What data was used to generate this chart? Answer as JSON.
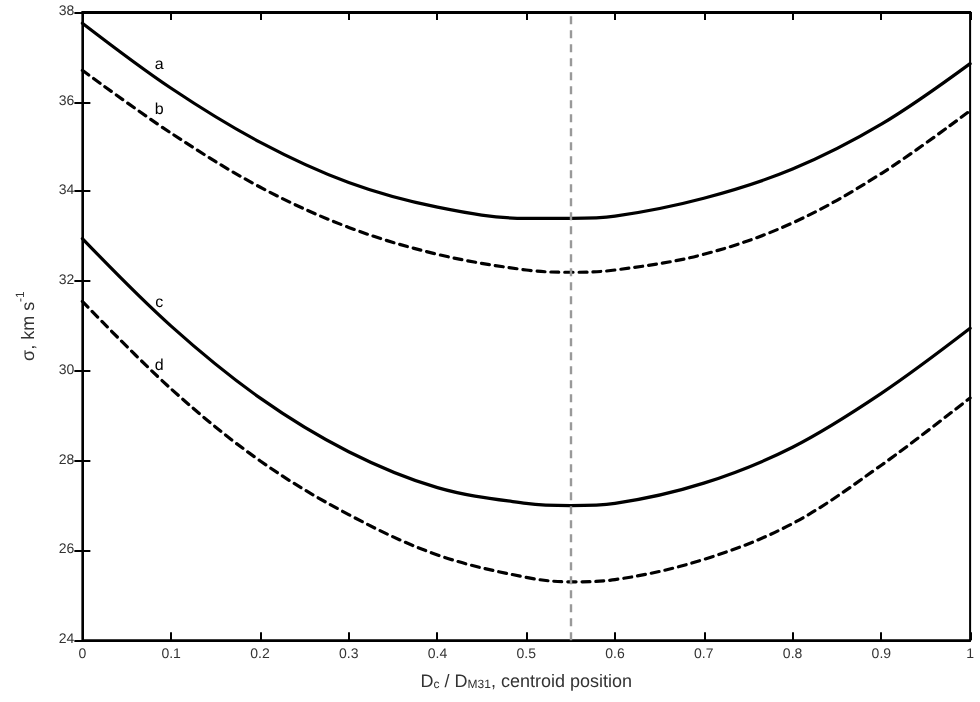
{
  "chart_data": {
    "type": "line",
    "xlabel": "D$_{c}$ / D$_{M31}$, centroid position",
    "ylabel": "σ, km s$^{-1}$",
    "x": [
      0,
      0.1,
      0.2,
      0.3,
      0.4,
      0.5,
      0.55,
      0.6,
      0.7,
      0.8,
      0.9,
      1.0
    ],
    "series": [
      {
        "name": "a",
        "color": "#000000",
        "line_style": "solid",
        "values": [
          37.75,
          36.3,
          35.1,
          34.2,
          33.65,
          33.4,
          33.4,
          33.45,
          33.85,
          34.5,
          35.5,
          36.85
        ]
      },
      {
        "name": "b",
        "color": "#000000",
        "line_style": "dashed",
        "values": [
          36.7,
          35.3,
          34.1,
          33.2,
          32.6,
          32.25,
          32.2,
          32.25,
          32.6,
          33.3,
          34.4,
          35.8
        ]
      },
      {
        "name": "c",
        "color": "#000000",
        "line_style": "solid",
        "values": [
          32.95,
          31.0,
          29.4,
          28.2,
          27.4,
          27.05,
          27.0,
          27.05,
          27.5,
          28.3,
          29.5,
          30.95
        ]
      },
      {
        "name": "d",
        "color": "#000000",
        "line_style": "dashed",
        "values": [
          31.55,
          29.6,
          28.0,
          26.8,
          25.9,
          25.4,
          25.3,
          25.35,
          25.8,
          26.6,
          27.9,
          29.4
        ]
      }
    ],
    "ref_lines": [
      {
        "axis": "x",
        "value": 0.55,
        "color": "#999999",
        "line_style": "dashed"
      }
    ],
    "xlim": [
      0,
      1
    ],
    "xticks": [
      0,
      0.1,
      0.2,
      0.3,
      0.4,
      0.5,
      0.6,
      0.7,
      0.8,
      0.9,
      1
    ],
    "ylim": [
      24,
      38
    ],
    "yticks": [
      24,
      26,
      28,
      30,
      32,
      34,
      36,
      38
    ],
    "marker": "none",
    "grid": false,
    "legend": false
  }
}
